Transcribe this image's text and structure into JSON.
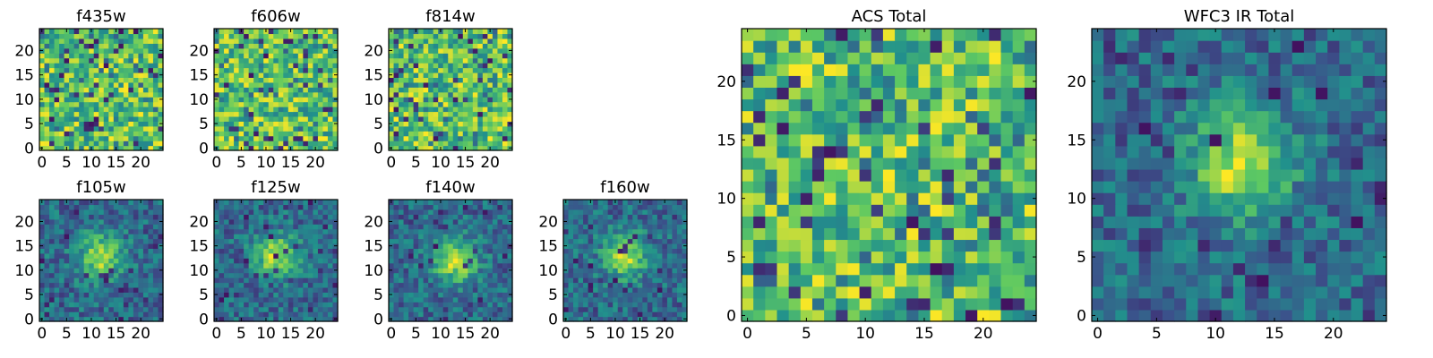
{
  "colormap": [
    "#440154",
    "#3b528b",
    "#21918c",
    "#5ec962",
    "#fde725"
  ],
  "chart_data": [
    {
      "type": "heatmap",
      "title": "f435w",
      "xticks": [
        "0",
        "5",
        "10",
        "15",
        "20"
      ],
      "yticks": [
        "0",
        "5",
        "10",
        "15",
        "20"
      ],
      "xlim": [
        -0.5,
        24.5
      ],
      "ylim": [
        -0.5,
        24.5
      ],
      "grid_size": 25,
      "pattern": "noise",
      "center": [
        13,
        12
      ]
    },
    {
      "type": "heatmap",
      "title": "f606w",
      "xticks": [
        "0",
        "5",
        "10",
        "15",
        "20"
      ],
      "yticks": [
        "0",
        "5",
        "10",
        "15",
        "20"
      ],
      "xlim": [
        -0.5,
        24.5
      ],
      "ylim": [
        -0.5,
        24.5
      ],
      "grid_size": 25,
      "pattern": "noise",
      "center": [
        13,
        12
      ]
    },
    {
      "type": "heatmap",
      "title": "f814w",
      "xticks": [
        "0",
        "5",
        "10",
        "15",
        "20"
      ],
      "yticks": [
        "0",
        "5",
        "10",
        "15",
        "20"
      ],
      "xlim": [
        -0.5,
        24.5
      ],
      "ylim": [
        -0.5,
        24.5
      ],
      "grid_size": 25,
      "pattern": "noise",
      "center": [
        13,
        12
      ]
    },
    {
      "type": "heatmap",
      "title": "f105w",
      "xticks": [
        "0",
        "5",
        "10",
        "15",
        "20"
      ],
      "yticks": [
        "0",
        "5",
        "10",
        "15",
        "20"
      ],
      "xlim": [
        -0.5,
        24.5
      ],
      "ylim": [
        -0.5,
        24.5
      ],
      "grid_size": 25,
      "pattern": "source",
      "center": [
        12,
        13
      ]
    },
    {
      "type": "heatmap",
      "title": "f125w",
      "xticks": [
        "0",
        "5",
        "10",
        "15",
        "20"
      ],
      "yticks": [
        "0",
        "5",
        "10",
        "15",
        "20"
      ],
      "xlim": [
        -0.5,
        24.5
      ],
      "ylim": [
        -0.5,
        24.5
      ],
      "grid_size": 25,
      "pattern": "source",
      "center": [
        12,
        13
      ]
    },
    {
      "type": "heatmap",
      "title": "f140w",
      "xticks": [
        "0",
        "5",
        "10",
        "15",
        "20"
      ],
      "yticks": [
        "0",
        "5",
        "10",
        "15",
        "20"
      ],
      "xlim": [
        -0.5,
        24.5
      ],
      "ylim": [
        -0.5,
        24.5
      ],
      "grid_size": 25,
      "pattern": "source",
      "center": [
        13,
        12
      ]
    },
    {
      "type": "heatmap",
      "title": "f160w",
      "xticks": [
        "0",
        "5",
        "10",
        "15",
        "20"
      ],
      "yticks": [
        "0",
        "5",
        "10",
        "15",
        "20"
      ],
      "xlim": [
        -0.5,
        24.5
      ],
      "ylim": [
        -0.5,
        24.5
      ],
      "grid_size": 25,
      "pattern": "source",
      "center": [
        12,
        13
      ]
    },
    {
      "type": "heatmap",
      "title": "ACS Total",
      "xticks": [
        "0",
        "5",
        "10",
        "15",
        "20"
      ],
      "yticks": [
        "0",
        "5",
        "10",
        "15",
        "20"
      ],
      "xlim": [
        -0.5,
        24.5
      ],
      "ylim": [
        -0.5,
        24.5
      ],
      "grid_size": 25,
      "pattern": "noise",
      "center": [
        13,
        12
      ]
    },
    {
      "type": "heatmap",
      "title": "WFC3 IR Total",
      "xticks": [
        "0",
        "5",
        "10",
        "15",
        "20"
      ],
      "yticks": [
        "0",
        "5",
        "10",
        "15",
        "20"
      ],
      "xlim": [
        -0.5,
        24.5
      ],
      "ylim": [
        -0.5,
        24.5
      ],
      "grid_size": 25,
      "pattern": "source",
      "center": [
        12,
        13
      ]
    }
  ]
}
